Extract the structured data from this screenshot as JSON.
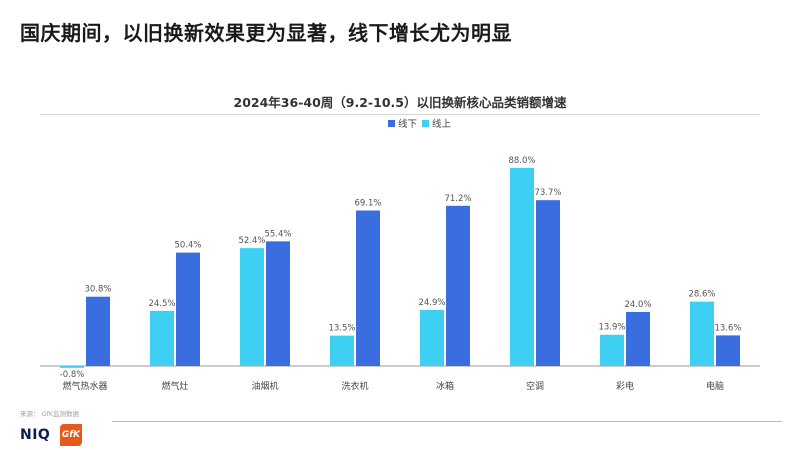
{
  "headline": "国庆期间，以旧换新效果更为显著，线下增长尤为明显",
  "footer": {
    "source": "来源： GfK监测数据",
    "logo_niq": "NIQ",
    "logo_gfk": "GfK"
  },
  "colors": {
    "offline": "#3a6ee0",
    "online": "#3ed0f2",
    "axis": "#9a9a9a",
    "label": "#555555"
  },
  "chart_data": {
    "type": "bar",
    "title": "2024年36-40周（9.2-10.5）以旧换新核心品类销额增速",
    "legend_position": "top-center",
    "categories": [
      "燃气热水器",
      "燃气灶",
      "油烟机",
      "洗衣机",
      "冰箱",
      "空调",
      "彩电",
      "电脑"
    ],
    "series": [
      {
        "name": "线上",
        "values": [
          -0.8,
          24.5,
          52.4,
          13.5,
          24.9,
          88.0,
          13.9,
          28.6
        ]
      },
      {
        "name": "线下",
        "values": [
          30.8,
          50.4,
          55.4,
          69.1,
          71.2,
          73.7,
          24.0,
          13.6
        ]
      }
    ],
    "data_labels": [
      [
        "-0.8%",
        "24.5%",
        "52.4%",
        "13.5%",
        "24.9%",
        "88.0%",
        "13.9%",
        "28.6%"
      ],
      [
        "30.8%",
        "50.4%",
        "55.4%",
        "69.1%",
        "71.2%",
        "73.7%",
        "24.0%",
        "13.6%"
      ]
    ],
    "legend": [
      "线下",
      "线上"
    ],
    "ylim": [
      -2,
      90
    ],
    "grid": false
  }
}
